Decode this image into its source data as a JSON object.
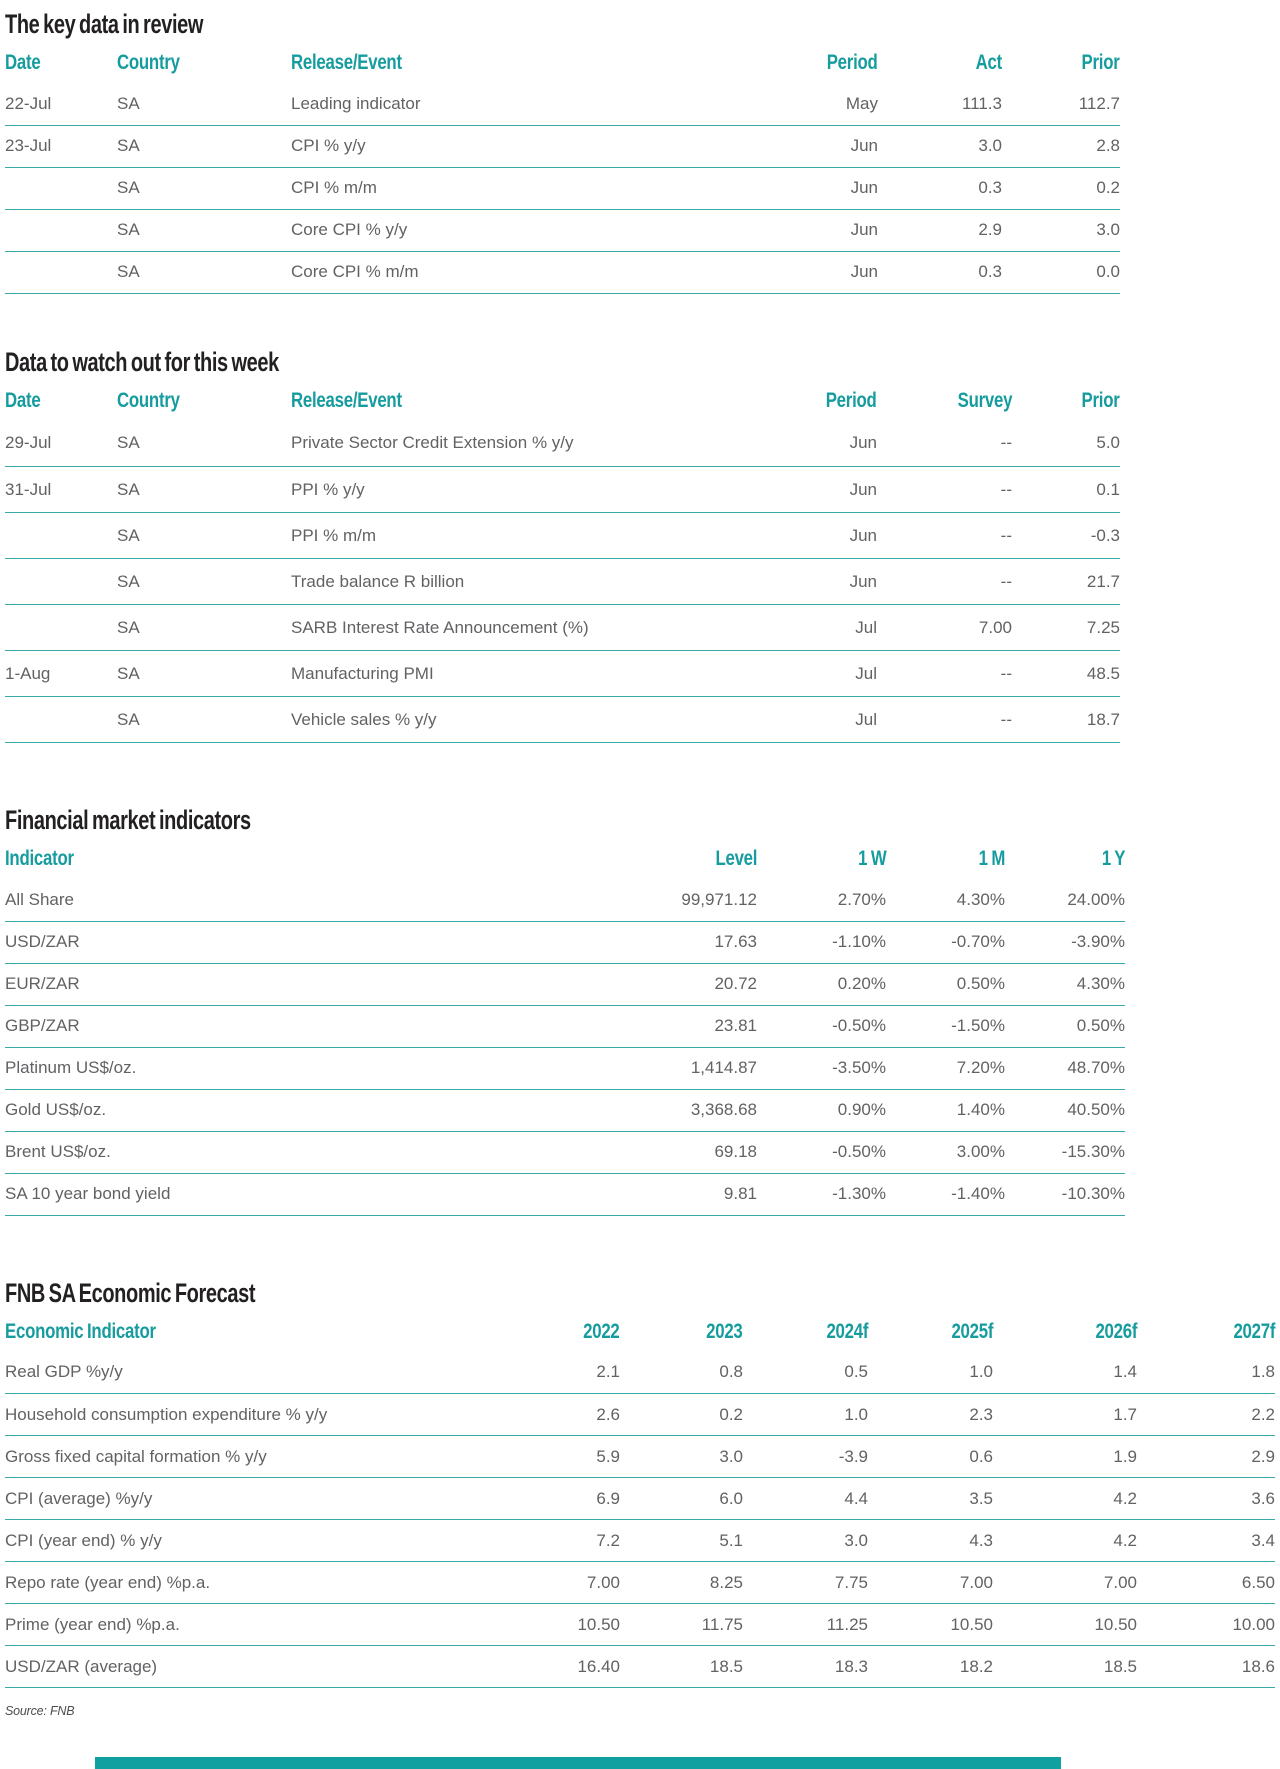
{
  "page": {
    "source_note": "Source: FNB",
    "accent_color": "#169C9E",
    "line_color": "#3AA9AA",
    "footer_bar_color": "#10A0A0",
    "body_text_color": "#616264",
    "title_text_color": "#232021"
  },
  "key_data": {
    "title": "The key data in review",
    "columns": [
      "Date",
      "Country",
      "Release/Event",
      "Period",
      "Act",
      "Prior"
    ],
    "rows": [
      [
        "22-Jul",
        "SA",
        "Leading indicator",
        "May",
        "111.3",
        "112.7"
      ],
      [
        "23-Jul",
        "SA",
        "CPI % y/y",
        "Jun",
        "3.0",
        "2.8"
      ],
      [
        "",
        "SA",
        "CPI % m/m",
        "Jun",
        "0.3",
        "0.2"
      ],
      [
        "",
        "SA",
        "Core CPI % y/y",
        "Jun",
        "2.9",
        "3.0"
      ],
      [
        "",
        "SA",
        "Core CPI % m/m",
        "Jun",
        "0.3",
        "0.0"
      ]
    ]
  },
  "watch_week": {
    "title": "Data to watch out for this week",
    "columns": [
      "Date",
      "Country",
      "Release/Event",
      "Period",
      "Survey",
      "Prior"
    ],
    "rows": [
      [
        "29-Jul",
        "SA",
        "Private Sector Credit Extension % y/y",
        "Jun",
        "--",
        "5.0"
      ],
      [
        "31-Jul",
        "SA",
        "PPI % y/y",
        "Jun",
        "--",
        "0.1"
      ],
      [
        "",
        "SA",
        "PPI % m/m",
        "Jun",
        "--",
        "-0.3"
      ],
      [
        "",
        "SA",
        "Trade balance R billion",
        "Jun",
        "--",
        "21.7"
      ],
      [
        "",
        "SA",
        "SARB Interest Rate Announcement (%)",
        "Jul",
        "7.00",
        "7.25"
      ],
      [
        "1-Aug",
        "SA",
        "Manufacturing PMI",
        "Jul",
        "--",
        "48.5"
      ],
      [
        "",
        "SA",
        "Vehicle sales % y/y",
        "Jul",
        "--",
        "18.7"
      ]
    ]
  },
  "market_indicators": {
    "title": "Financial market indicators",
    "columns": [
      "Indicator",
      "Level",
      "1 W",
      "1 M",
      "1 Y"
    ],
    "rows": [
      [
        "All Share",
        "99,971.12",
        "2.70%",
        "4.30%",
        "24.00%"
      ],
      [
        "USD/ZAR",
        "17.63",
        "-1.10%",
        "-0.70%",
        "-3.90%"
      ],
      [
        "EUR/ZAR",
        "20.72",
        "0.20%",
        "0.50%",
        "4.30%"
      ],
      [
        "GBP/ZAR",
        "23.81",
        "-0.50%",
        "-1.50%",
        "0.50%"
      ],
      [
        "Platinum US$/oz.",
        "1,414.87",
        "-3.50%",
        "7.20%",
        "48.70%"
      ],
      [
        "Gold US$/oz.",
        "3,368.68",
        "0.90%",
        "1.40%",
        "40.50%"
      ],
      [
        "Brent US$/oz.",
        "69.18",
        "-0.50%",
        "3.00%",
        "-15.30%"
      ],
      [
        "SA 10 year bond yield",
        "9.81",
        "-1.30%",
        "-1.40%",
        "-10.30%"
      ]
    ]
  },
  "forecast": {
    "title": "FNB SA Economic Forecast",
    "columns": [
      "Economic Indicator",
      "2022",
      "2023",
      "2024f",
      "2025f",
      "2026f",
      "2027f"
    ],
    "rows": [
      [
        "Real GDP %y/y",
        "2.1",
        "0.8",
        "0.5",
        "1.0",
        "1.4",
        "1.8"
      ],
      [
        "Household consumption expenditure % y/y",
        "2.6",
        "0.2",
        "1.0",
        "2.3",
        "1.7",
        "2.2"
      ],
      [
        "Gross fixed capital formation % y/y",
        "5.9",
        "3.0",
        "-3.9",
        "0.6",
        "1.9",
        "2.9"
      ],
      [
        "CPI (average) %y/y",
        "6.9",
        "6.0",
        "4.4",
        "3.5",
        "4.2",
        "3.6"
      ],
      [
        "CPI (year end) % y/y",
        "7.2",
        "5.1",
        "3.0",
        "4.3",
        "4.2",
        "3.4"
      ],
      [
        "Repo rate (year end) %p.a.",
        "7.00",
        "8.25",
        "7.75",
        "7.00",
        "7.00",
        "6.50"
      ],
      [
        "Prime (year end) %p.a.",
        "10.50",
        "11.75",
        "11.25",
        "10.50",
        "10.50",
        "10.00"
      ],
      [
        "USD/ZAR (average)",
        "16.40",
        "18.5",
        "18.3",
        "18.2",
        "18.5",
        "18.6"
      ]
    ]
  }
}
